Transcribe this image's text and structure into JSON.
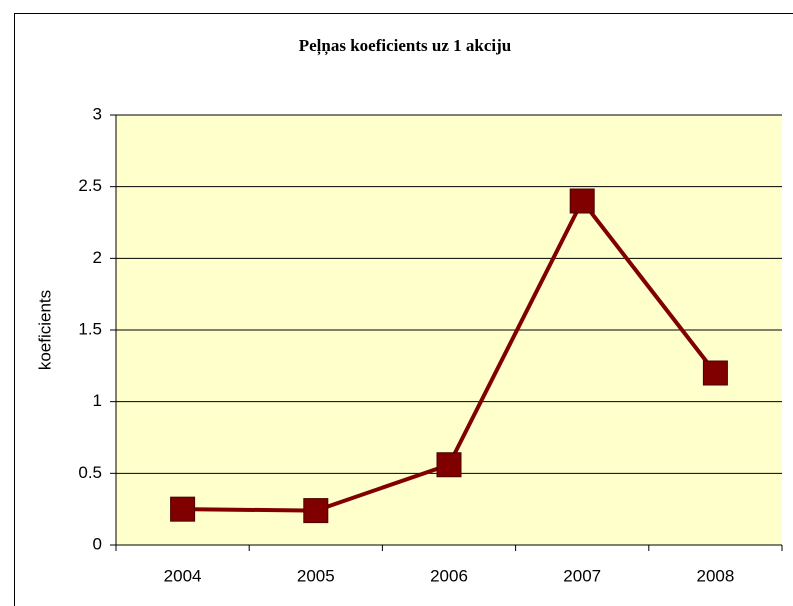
{
  "chart_data": {
    "type": "line",
    "title": "Peļņas koeficients uz 1 akciju",
    "y_label": "koeficients",
    "categories": [
      "2004",
      "2005",
      "2006",
      "2007",
      "2008"
    ],
    "values": [
      0.25,
      0.24,
      0.56,
      2.4,
      1.2
    ],
    "color": "#800000",
    "plot_background": "#ffffcc",
    "ylim": [
      0,
      3
    ],
    "yticks": [
      0,
      0.5,
      1,
      1.5,
      2,
      2.5,
      3
    ],
    "grid": true
  }
}
